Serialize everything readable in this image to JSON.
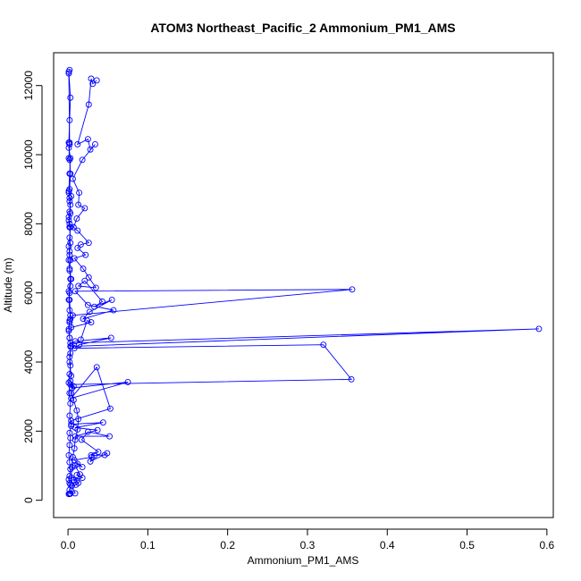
{
  "chart_data": {
    "type": "scatter",
    "title": "ATOM3 Northeast_Pacific_2 Ammonium_PM1_AMS",
    "xlabel": "Ammonium_PM1_AMS",
    "ylabel": "Altitude (m)",
    "xlim": [
      -0.018,
      0.608
    ],
    "ylim": [
      -500,
      12950
    ],
    "xticks": [
      0,
      0.1,
      0.2,
      0.3,
      0.4,
      0.5,
      0.6
    ],
    "xtick_labels": [
      "0.0",
      "0.1",
      "0.2",
      "0.3",
      "0.4",
      "0.5",
      "0.6"
    ],
    "yticks": [
      0,
      2000,
      4000,
      6000,
      8000,
      10000,
      12000
    ],
    "ytick_labels": [
      "0",
      "2000",
      "4000",
      "6000",
      "8000",
      "10000",
      "12000"
    ],
    "grid": false,
    "legend": "none",
    "marker": "open-circle",
    "line": true,
    "color": "#0000ff",
    "series": [
      {
        "x": [
          0.002,
          0.001,
          0.003,
          0.002,
          0.001,
          0.002,
          0.001,
          0.002,
          0.003,
          0.002,
          0.001,
          0.002,
          0.003,
          0.002,
          0.001,
          0.002,
          0.003,
          0.002,
          0.001,
          0.002,
          0.003,
          0.002,
          0.004,
          0.003,
          0.002,
          0.001,
          0.002,
          0.003,
          0.002,
          0.001,
          0.002,
          0.003,
          0.002,
          0.003,
          0.002,
          0.001,
          0.002,
          0.003,
          0.002,
          0.004,
          0.002,
          0.003,
          0.002,
          0.001,
          0.002,
          0.003,
          0.002,
          0.001,
          0.002,
          0.003,
          0.002
        ],
        "y": [
          12450,
          12400,
          11650,
          11000,
          10350,
          10300,
          9900,
          9850,
          9450,
          9000,
          8900,
          8750,
          8550,
          8350,
          8200,
          8000,
          7900,
          7600,
          7350,
          7100,
          6950,
          6700,
          6400,
          6200,
          6000,
          5800,
          5500,
          5250,
          5150,
          4900,
          4700,
          4450,
          4150,
          3900,
          3650,
          3400,
          3100,
          2800,
          2450,
          2150,
          1950,
          1800,
          1600,
          1300,
          1100,
          900,
          700,
          600,
          500,
          200,
          180
        ]
      },
      {
        "x": [
          0.036,
          0.031,
          0.029,
          0.026,
          0.012,
          0.025,
          0.028,
          0.034,
          0.018,
          0.006,
          0.014,
          0.013,
          0.021,
          0.011,
          0.007,
          0.012,
          0.026,
          0.016,
          0.012,
          0.022,
          0.008,
          0.019,
          0.026,
          0.035,
          0.013,
          0.021,
          0.043,
          0.033,
          0.055,
          0.027,
          0.019,
          0.057,
          0.025,
          0.009,
          0.356,
          0.006,
          0.004,
          0.029,
          0.024,
          0.016
        ],
        "y": [
          12150,
          12050,
          12200,
          11450,
          10300,
          10450,
          10150,
          10300,
          9850,
          9300,
          8900,
          8550,
          8450,
          8150,
          7900,
          7800,
          7450,
          7400,
          7300,
          7100,
          7000,
          6700,
          6450,
          6150,
          6200,
          6350,
          5750,
          5600,
          5800,
          5450,
          5250,
          5500,
          5650,
          6050,
          6100,
          5350,
          5000,
          5150,
          5200,
          4650
        ]
      },
      {
        "x": [
          0.004,
          0.59,
          0.003,
          0.009,
          0.054,
          0.014,
          0.008,
          0.32,
          0.355,
          0.003,
          0.007,
          0.005,
          0.075,
          0.004,
          0.036,
          0.053,
          0.004,
          0.004,
          0.044,
          0.009,
          0.037,
          0.009,
          0.052,
          0.025,
          0.017,
          0.038,
          0.029,
          0.033,
          0.046,
          0.049,
          0.028,
          0.03,
          0.008,
          0.018,
          0.012,
          0.009,
          0.015,
          0.011,
          0.018,
          0.007,
          0.011,
          0.013,
          0.01,
          0.005,
          0.009,
          0.003
        ],
        "y": [
          4450,
          4960,
          4550,
          4600,
          4700,
          4500,
          4400,
          4500,
          3500,
          3350,
          3300,
          3250,
          3420,
          2950,
          3850,
          2650,
          2300,
          2200,
          2250,
          2100,
          2030,
          1850,
          1850,
          1980,
          1750,
          1400,
          1300,
          1300,
          1310,
          1360,
          1120,
          1250,
          1160,
          960,
          1050,
          1000,
          750,
          730,
          650,
          580,
          560,
          500,
          450,
          420,
          200,
          190
        ]
      },
      {
        "x": [
          0.001,
          0.002,
          0.001,
          0.003,
          0.002,
          0.001,
          0.004,
          0.002,
          0.003,
          0.001,
          0.002,
          0.003,
          0.002,
          0.001,
          0.002,
          0.003,
          0.001,
          0.002,
          0.003,
          0.002,
          0.001,
          0.002,
          0.003,
          0.002,
          0.004,
          0.003,
          0.005,
          0.004,
          0.007,
          0.011,
          0.013,
          0.012,
          0.009,
          0.008,
          0.006,
          0.005,
          0.004,
          0.003,
          0.002,
          0.001
        ],
        "y": [
          12350,
          10350,
          10200,
          9900,
          9450,
          8950,
          8800,
          8650,
          8300,
          8100,
          7900,
          7450,
          7200,
          6950,
          6650,
          6400,
          6050,
          5800,
          5350,
          5200,
          4950,
          4700,
          4250,
          4000,
          3600,
          3450,
          3250,
          3100,
          2900,
          2600,
          2350,
          2050,
          1750,
          1500,
          1250,
          950,
          650,
          450,
          300,
          180
        ]
      }
    ]
  }
}
